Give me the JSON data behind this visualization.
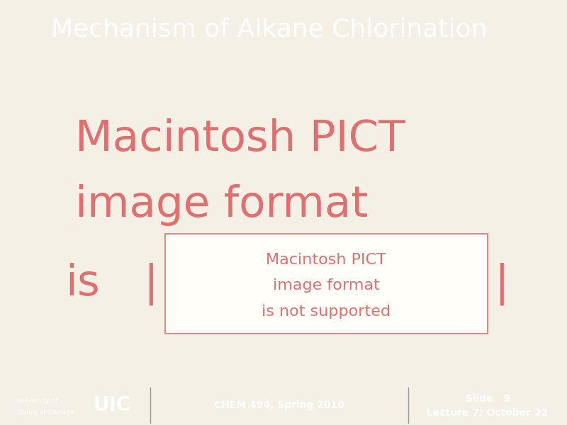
{
  "title": "Mechanism of Alkane Chlorination",
  "title_bg_color": "#6b6b6b",
  "title_text_color": "#ffffff",
  "title_fontsize": 26,
  "slide_bg_color": "#f5f0e6",
  "content_bg_color": "#fffef8",
  "content_border_color": "#cccccc",
  "pict_text_color": "#e07070",
  "pict_fontsize_large": 44,
  "pict_fontsize_small": 16,
  "footer_bg_color": "#6b6b6b",
  "footer_text_color": "#ffffff",
  "uic_large_text": "UIC",
  "uic_small_text1": "University of",
  "uic_small_text2": "Illinois at Chicago",
  "center_footer_text": "CHEM 494, Spring 2010",
  "right_footer_line1": "Slide   9",
  "right_footer_line2": "Lecture 7: October 22",
  "footer_fontsize": 10,
  "uic_fontsize": 20,
  "divider_color": "#999999",
  "inner_box_bg": "#fffef8",
  "inner_box_border": "#e07070"
}
